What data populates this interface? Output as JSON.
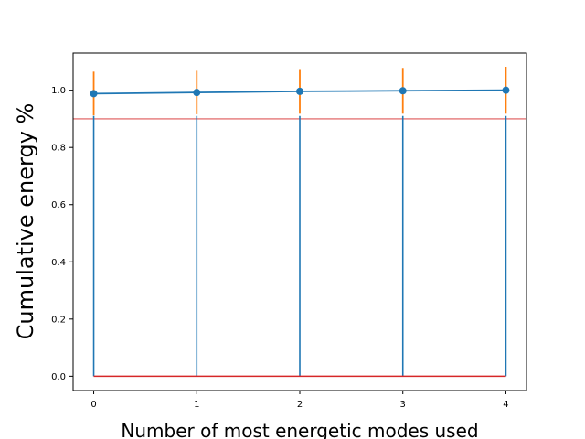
{
  "chart_data": {
    "type": "line",
    "title": "",
    "xlabel": "Number of most energetic modes used",
    "ylabel": "Cumulative energy %",
    "xlim": [
      -0.2,
      4.2
    ],
    "ylim": [
      -0.05,
      1.13
    ],
    "x_ticks": [
      "0",
      "1",
      "2",
      "3",
      "4"
    ],
    "y_ticks": [
      "0.0",
      "0.2",
      "0.4",
      "0.6",
      "0.8",
      "1.0"
    ],
    "x_tick_values": [
      0,
      1,
      2,
      3,
      4
    ],
    "y_tick_values": [
      0.0,
      0.2,
      0.4,
      0.6,
      0.8,
      1.0
    ],
    "grid": false,
    "threshold": 0.9,
    "series": [
      {
        "x": [
          0,
          1,
          2,
          3,
          4
        ],
        "values": [
          0.988,
          0.992,
          0.996,
          0.998,
          1.0
        ],
        "error_low": [
          0.912,
          0.916,
          0.918,
          0.918,
          0.918
        ],
        "error_high": [
          1.065,
          1.068,
          1.074,
          1.078,
          1.082
        ]
      }
    ],
    "stems": {
      "x": [
        0,
        1,
        2,
        3,
        4
      ],
      "top": [
        0.91,
        0.91,
        0.91,
        0.91,
        0.91
      ],
      "baseline": 0.0
    },
    "colors": {
      "series": "#1f77b4",
      "error": "#ff7f0e",
      "stem": "#1f77b4",
      "baseline": "#d62728",
      "threshold": "#d62728"
    }
  }
}
